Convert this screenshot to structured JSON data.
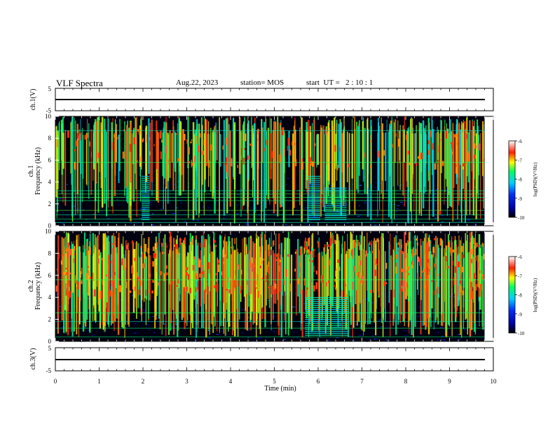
{
  "header": {
    "title": "VLF Spectra",
    "date": "Aug.22, 2023",
    "station": "station= MOS",
    "start": "start  UT =   2 : 10 : 1"
  },
  "chart_data": [
    {
      "type": "line",
      "panel": "ch.1 waveform",
      "ylabel": "ch.1(V)",
      "ylim": [
        -5,
        5
      ],
      "yticks": [
        "5",
        "-5"
      ],
      "series": [
        {
          "x": [
            0,
            9.8
          ],
          "y": [
            0,
            0
          ]
        }
      ]
    },
    {
      "type": "heatmap",
      "panel": "ch.1 spectrogram",
      "ylabel": "ch.1\nFrequency (kHz)",
      "ylabel_lines": [
        "ch.1",
        "Frequency (kHz)"
      ],
      "ylim": [
        0,
        10
      ],
      "yticks": [
        "0",
        "2",
        "4",
        "6",
        "8",
        "10"
      ],
      "xlim": [
        0,
        10
      ],
      "data_end_min": 9.8,
      "colorbar": {
        "label": "log(PSD)(V²/Hz)",
        "range": [
          -10,
          -6
        ],
        "ticks": [
          "-6",
          "-7",
          "-8",
          "-9",
          "-10"
        ]
      },
      "events": [
        {
          "t_start_min": 1.97,
          "t_end_min": 2.15,
          "f_low_khz": 0.5,
          "f_high_khz": 4.5
        },
        {
          "t_start_min": 5.75,
          "t_end_min": 6.05,
          "f_low_khz": 0.5,
          "f_high_khz": 4.5
        },
        {
          "t_start_min": 6.15,
          "t_end_min": 6.65,
          "f_low_khz": 0.5,
          "f_high_khz": 3.5
        }
      ],
      "lines_khz": [
        0.3,
        0.6,
        1.0,
        1.4,
        2.3,
        2.6,
        2.9,
        3.2,
        5.8,
        8.7
      ]
    },
    {
      "type": "heatmap",
      "panel": "ch.2 spectrogram",
      "ylabel": "ch.2\nFrequency (kHz)",
      "ylabel_lines": [
        "ch.2",
        "Frequency (kHz)"
      ],
      "ylim": [
        0,
        10
      ],
      "yticks": [
        "0",
        "2",
        "4",
        "6",
        "8",
        "10"
      ],
      "xlim": [
        0,
        10
      ],
      "data_end_min": 9.8,
      "colorbar": {
        "label": "log(PSD)(V²/Hz)",
        "range": [
          -10,
          -6
        ],
        "ticks": [
          "-6",
          "-7",
          "-8",
          "-9",
          "-10"
        ]
      },
      "events": [
        {
          "t_start_min": 5.7,
          "t_end_min": 6.7,
          "f_low_khz": 0.5,
          "f_high_khz": 4.0
        }
      ],
      "lines_khz": [
        0.4,
        1.2,
        1.8,
        2.6,
        5.6
      ]
    },
    {
      "type": "line",
      "panel": "ch.3 waveform",
      "ylabel": "ch.3(V)",
      "ylim": [
        -5,
        5
      ],
      "yticks": [
        "5",
        "-5"
      ],
      "xlabel": "Time  (min)",
      "xlim": [
        0,
        10
      ],
      "xticks": [
        "0",
        "1",
        "2",
        "3",
        "4",
        "5",
        "6",
        "7",
        "8",
        "9",
        "10"
      ],
      "series": [
        {
          "x": [
            0,
            9.8
          ],
          "y": [
            0,
            0
          ]
        }
      ]
    }
  ]
}
